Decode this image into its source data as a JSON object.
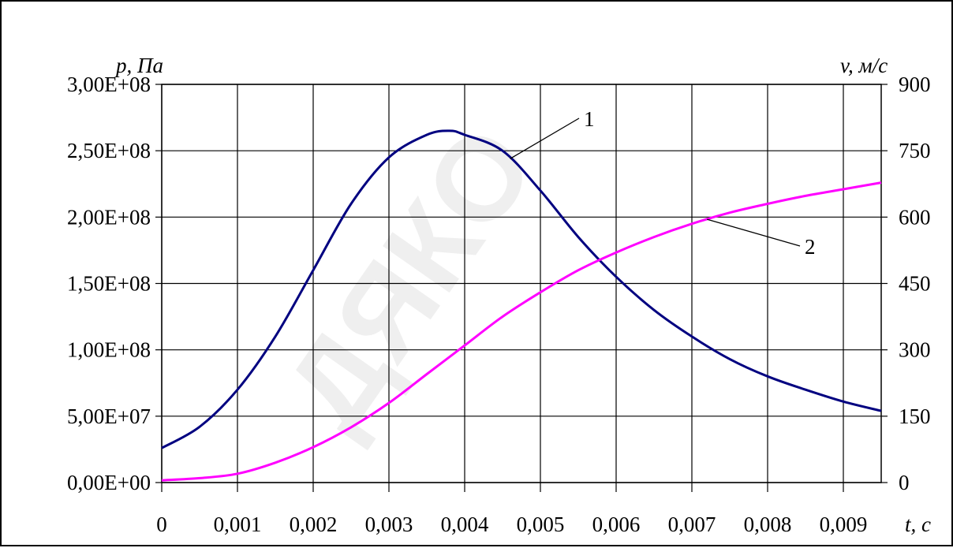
{
  "chart_data": {
    "type": "line",
    "y_left_label": "p, Па",
    "y_right_label": "v, м/с",
    "x_label": "t, c",
    "x_ticks": [
      "0",
      "0,001",
      "0,002",
      "0,003",
      "0,004",
      "0,005",
      "0,006",
      "0,007",
      "0,008",
      "0,009"
    ],
    "y_left_ticks": [
      "0,00E+00",
      "5,00E+07",
      "1,00E+08",
      "1,50E+08",
      "2,00E+08",
      "2,50E+08",
      "3,00E+08"
    ],
    "y_right_ticks": [
      "0",
      "150",
      "300",
      "450",
      "600",
      "750",
      "900"
    ],
    "xlim": [
      0,
      0.0095
    ],
    "ylim_left": [
      0,
      300000000
    ],
    "ylim_right": [
      0,
      900
    ],
    "grid": true,
    "watermark": "ДЯКО",
    "series": [
      {
        "name": "1",
        "axis": "left",
        "color": "#000080",
        "x": [
          0,
          0.0005,
          0.001,
          0.0015,
          0.002,
          0.0025,
          0.003,
          0.0035,
          0.0038,
          0.004,
          0.0045,
          0.005,
          0.0055,
          0.006,
          0.0065,
          0.007,
          0.0075,
          0.008,
          0.0085,
          0.009,
          0.0095
        ],
        "values": [
          26000000,
          42000000,
          70000000,
          110000000,
          160000000,
          210000000,
          245000000,
          262000000,
          265000000,
          262000000,
          250000000,
          220000000,
          185000000,
          155000000,
          130000000,
          110000000,
          93000000,
          80000000,
          70000000,
          61000000,
          54000000
        ]
      },
      {
        "name": "2",
        "axis": "right",
        "color": "#ff00ff",
        "x": [
          0,
          0.0005,
          0.001,
          0.0015,
          0.002,
          0.0025,
          0.003,
          0.0035,
          0.004,
          0.0045,
          0.005,
          0.0055,
          0.006,
          0.0065,
          0.007,
          0.0075,
          0.008,
          0.0085,
          0.009,
          0.0095
        ],
        "values": [
          5,
          10,
          20,
          45,
          80,
          125,
          180,
          245,
          310,
          375,
          430,
          480,
          520,
          555,
          585,
          610,
          630,
          648,
          663,
          678
        ]
      }
    ],
    "annotations": [
      {
        "text": "1",
        "series": "1",
        "at_x": 0.0046
      },
      {
        "text": "2",
        "series": "2",
        "at_x": 0.0072
      }
    ]
  }
}
